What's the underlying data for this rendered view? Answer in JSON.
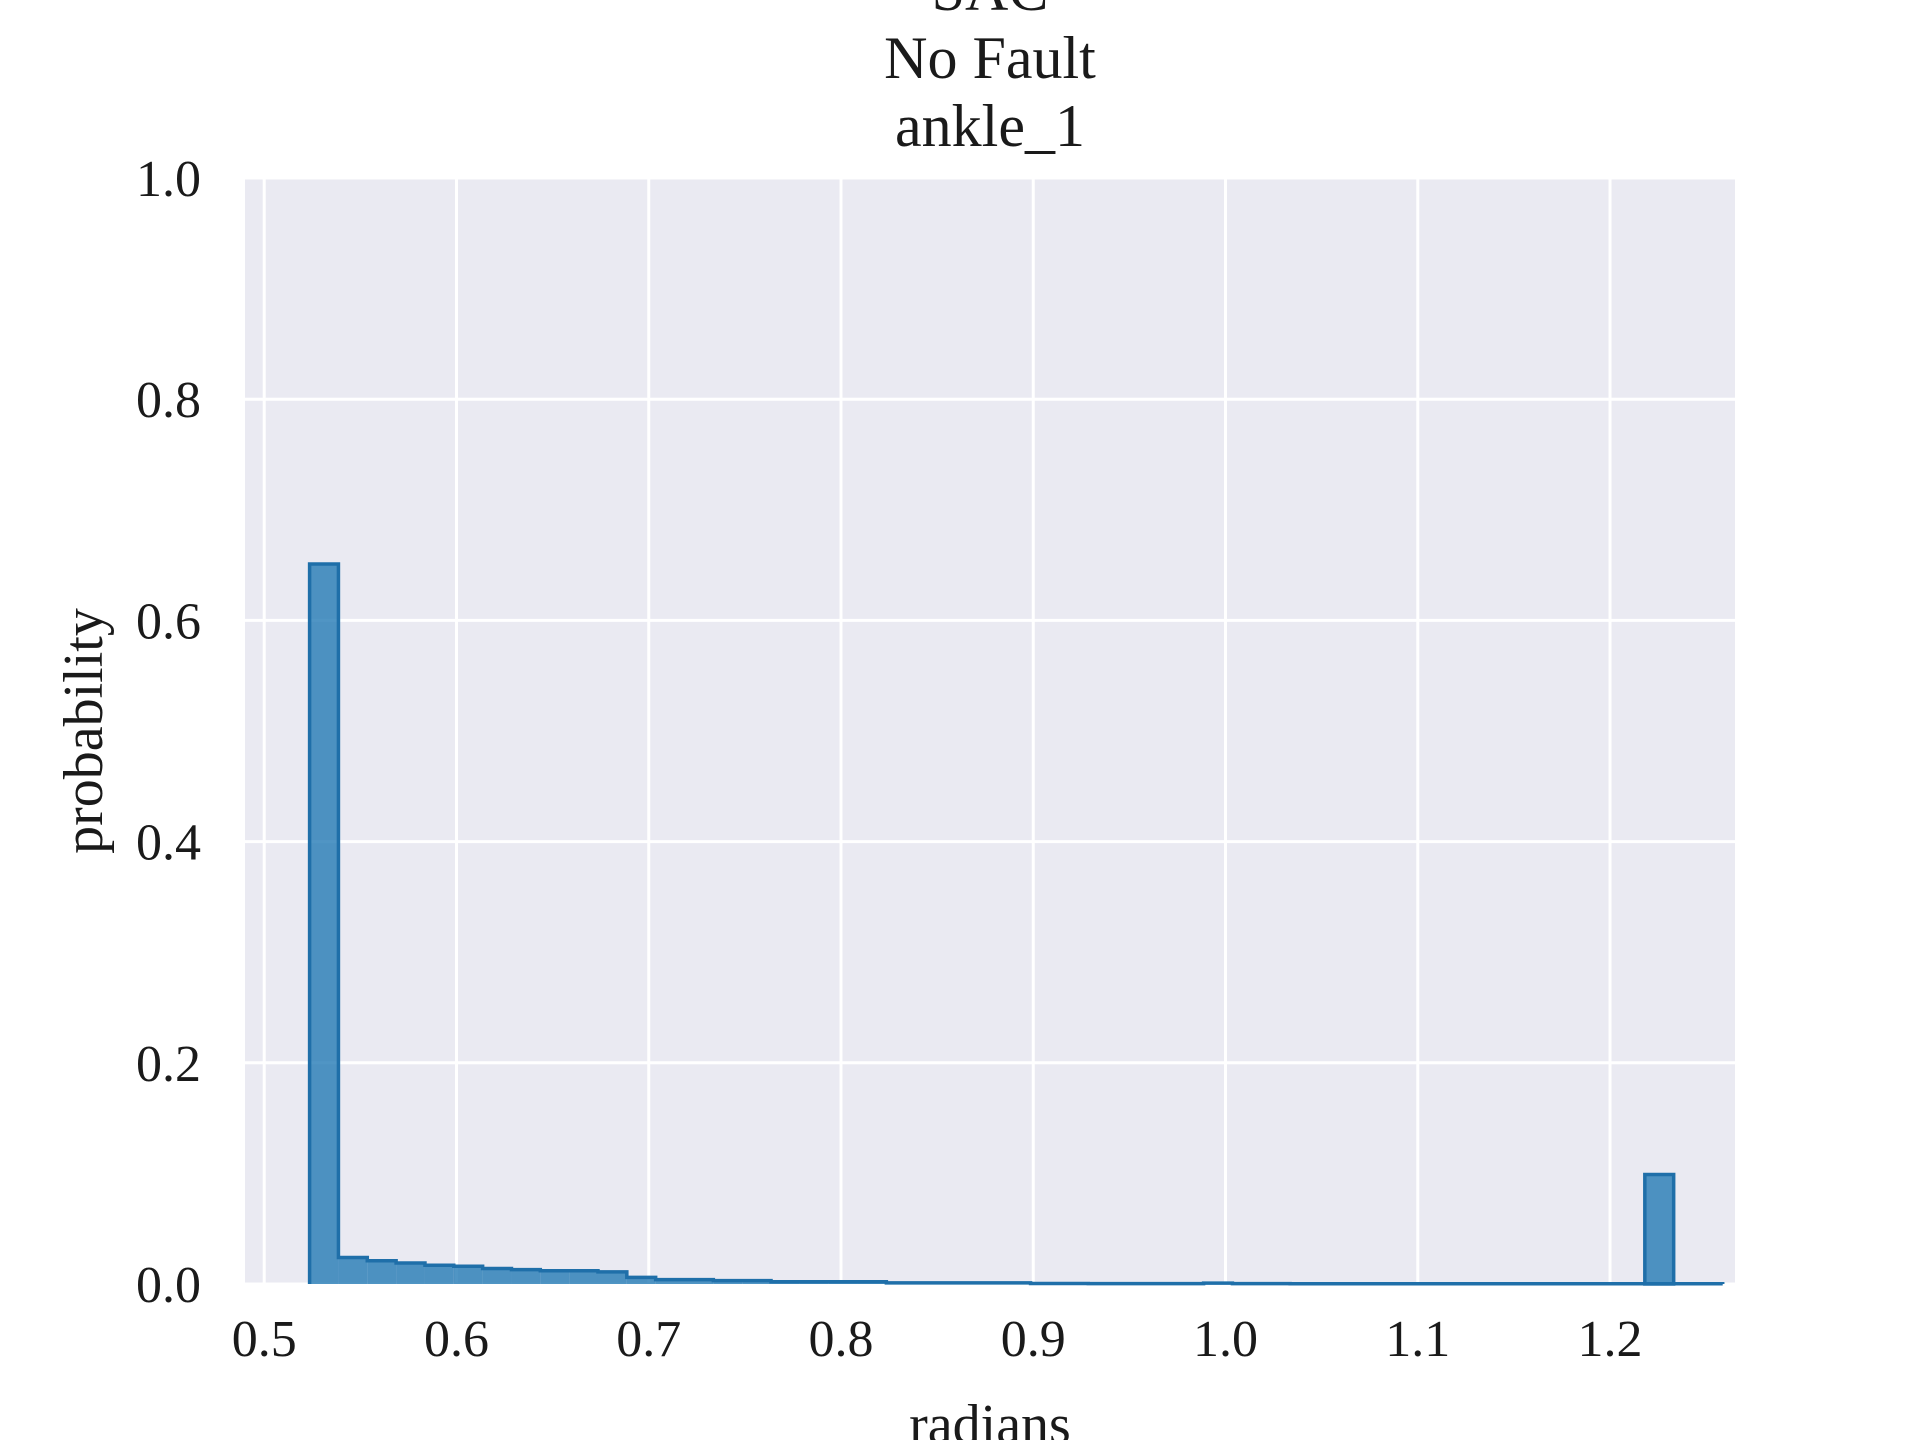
{
  "chart_data": {
    "type": "bar",
    "title_lines": [
      "SAC",
      "No Fault",
      "ankle_1"
    ],
    "xlabel": "radians",
    "ylabel": "probability",
    "xlim": [
      0.49,
      1.265
    ],
    "ylim": [
      0,
      1.0
    ],
    "x_ticks": [
      0.5,
      0.6,
      0.7,
      0.8,
      0.9,
      1.0,
      1.1,
      1.2
    ],
    "x_tick_labels": [
      "0.5",
      "0.6",
      "0.7",
      "0.8",
      "0.9",
      "1.0",
      "1.1",
      "1.2"
    ],
    "y_ticks": [
      0.0,
      0.2,
      0.4,
      0.6,
      0.8,
      1.0
    ],
    "y_tick_labels": [
      "0.0",
      "0.2",
      "0.4",
      "0.6",
      "0.8",
      "1.0"
    ],
    "grid": true,
    "colors": {
      "background": "#eaeaf2",
      "grid": "#ffffff",
      "bar_fill": "#1f77b4",
      "bar_stroke": "#1f6fa9"
    },
    "bin_width": 0.015,
    "bin_start": 0.5236,
    "values": [
      0.651,
      0.024,
      0.021,
      0.019,
      0.017,
      0.016,
      0.014,
      0.013,
      0.012,
      0.012,
      0.011,
      0.006,
      0.004,
      0.004,
      0.003,
      0.003,
      0.002,
      0.002,
      0.002,
      0.002,
      0.001,
      0.001,
      0.001,
      0.001,
      0.001,
      0.0005,
      0.0005,
      0.0003,
      0.0003,
      0.0003,
      0.0003,
      0.0008,
      0.0003,
      0.0003,
      0.0002,
      0.0002,
      0.0002,
      0.0002,
      0.0002,
      0.0002,
      0.0002,
      0.0002,
      0.0002,
      0.0002,
      0.0002,
      0.0002,
      0.0002,
      0.0002,
      0.0002,
      0.0002,
      0.0002,
      0.0002,
      0.0002,
      0.0002,
      0.0002,
      0.0002,
      0.0002,
      0.0002,
      0.0002,
      0.0002,
      0.0002,
      0.0002,
      0.0002,
      0.0002,
      0.0002,
      0.0002,
      0.0002,
      0.0002,
      0.0002,
      0.0002,
      0.0002,
      0.0002,
      0.0002,
      0.0002,
      0.0002,
      0.0002,
      0.0002,
      0.0002,
      0.0002,
      0.0002,
      0.0002,
      0.0002,
      0.0002,
      0.0002,
      0.0002,
      0.0002,
      0.0002,
      0.0002,
      0.0002,
      0.0002,
      0.0002,
      0.0002,
      0.0002,
      0.0002,
      0.0002,
      0.0002,
      0.0002,
      0.0002,
      0.0002,
      0.0002,
      0.0002,
      0.0002,
      0.0002,
      0.0002,
      0.0002,
      0.0002,
      0.0002,
      0.0002,
      0.0002,
      0.0002,
      0.0002,
      0.0002,
      0.0002,
      0.0002,
      0.0002,
      0.0002,
      0.0002,
      0.0002,
      0.0002,
      0.0002,
      0.0002,
      0.0002,
      0.0002,
      0.0002,
      0.0002,
      0.0002,
      0.0002,
      0.0002,
      0.0002,
      0.0002,
      0.0002,
      0.0002,
      0.0002,
      0.0002,
      0.0002,
      0.0002,
      0.0002,
      0.0002,
      0.0002,
      0.0002,
      0.0002,
      0.0002,
      0.0002,
      0.0002,
      0.0002,
      0.0002,
      0.0002,
      0.0002,
      0.0002,
      0.0002,
      0.0002,
      0.0002,
      0.0002,
      0.0002,
      0.0002
    ],
    "extra_bars": [
      {
        "x": 1.2181,
        "value": 0.099
      }
    ]
  }
}
